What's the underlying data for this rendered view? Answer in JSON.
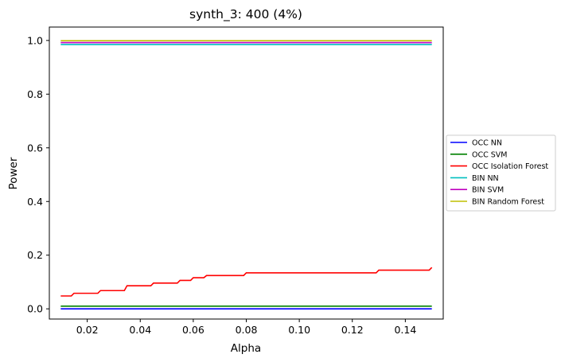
{
  "chart_data": {
    "type": "line",
    "title": "synth_3: 400 (4%)",
    "xlabel": "Alpha",
    "ylabel": "Power",
    "xlim": [
      0.0057,
      0.1543
    ],
    "ylim": [
      -0.038,
      1.05
    ],
    "xticks": [
      0.02,
      0.04,
      0.06,
      0.08,
      0.1,
      0.12,
      0.14
    ],
    "xtick_labels": [
      "0.02",
      "0.04",
      "0.06",
      "0.08",
      "0.10",
      "0.12",
      "0.14"
    ],
    "yticks": [
      0.0,
      0.2,
      0.4,
      0.6,
      0.8,
      1.0
    ],
    "ytick_labels": [
      "0.0",
      "0.2",
      "0.4",
      "0.6",
      "0.8",
      "1.0"
    ],
    "grid": false,
    "legend_position": "right-outside",
    "series": [
      {
        "name": "OCC NN",
        "color": "#0000ff",
        "x": [
          0.01,
          0.15
        ],
        "y": [
          0.0,
          0.0
        ]
      },
      {
        "name": "OCC SVM",
        "color": "#008000",
        "x": [
          0.01,
          0.15
        ],
        "y": [
          0.01,
          0.01
        ]
      },
      {
        "name": "OCC Isolation Forest",
        "color": "#ff0000",
        "x": [
          0.01,
          0.014,
          0.015,
          0.024,
          0.025,
          0.034,
          0.035,
          0.044,
          0.045,
          0.054,
          0.055,
          0.059,
          0.06,
          0.064,
          0.065,
          0.079,
          0.08,
          0.129,
          0.13,
          0.149,
          0.15
        ],
        "y": [
          0.048,
          0.048,
          0.058,
          0.058,
          0.068,
          0.068,
          0.086,
          0.086,
          0.096,
          0.096,
          0.106,
          0.106,
          0.116,
          0.116,
          0.124,
          0.124,
          0.134,
          0.134,
          0.144,
          0.144,
          0.154
        ]
      },
      {
        "name": "BIN NN",
        "color": "#00bfbf",
        "x": [
          0.01,
          0.15
        ],
        "y": [
          0.985,
          0.985
        ]
      },
      {
        "name": "BIN SVM",
        "color": "#bf00bf",
        "x": [
          0.01,
          0.15
        ],
        "y": [
          0.992,
          0.992
        ]
      },
      {
        "name": "BIN Random Forest",
        "color": "#bfbf00",
        "x": [
          0.01,
          0.15
        ],
        "y": [
          0.999,
          0.999
        ]
      }
    ]
  }
}
